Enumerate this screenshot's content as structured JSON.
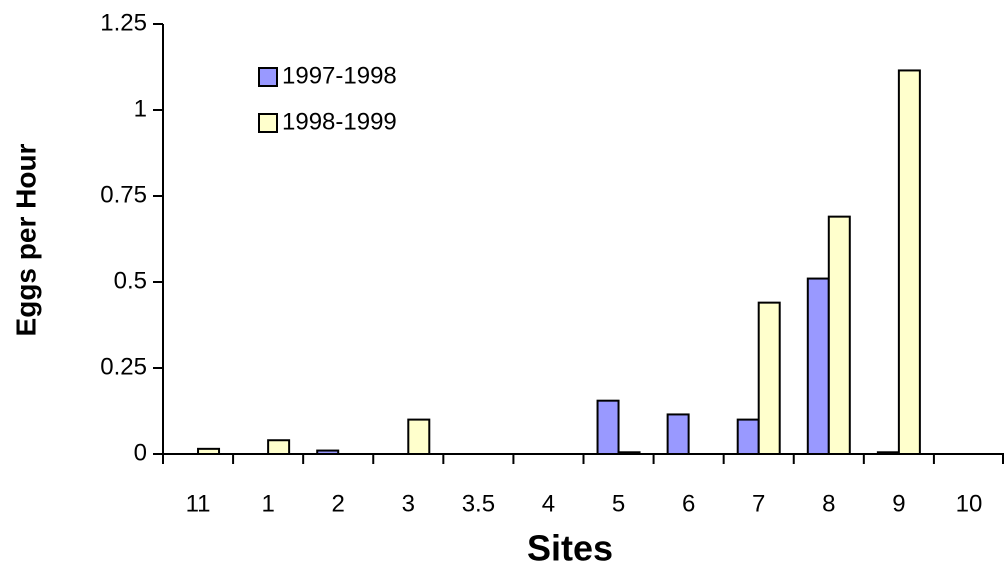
{
  "chart_data": {
    "type": "bar",
    "x_label": "Sites",
    "y_label": "Eggs per Hour",
    "categories": [
      "11",
      "1",
      "2",
      "3",
      "3.5",
      "4",
      "5",
      "6",
      "7",
      "8",
      "9",
      "10"
    ],
    "series": [
      {
        "name": "1997-1998",
        "color": "#9999ff",
        "values": [
          0,
          0,
          0.01,
          0,
          0,
          0,
          0.155,
          0.115,
          0.1,
          0.51,
          0.005,
          0
        ]
      },
      {
        "name": "1998-1999",
        "color": "#ffffcc",
        "values": [
          0.015,
          0.04,
          0,
          0.1,
          0,
          0,
          0.005,
          0,
          0.44,
          0.69,
          1.115,
          0
        ]
      }
    ],
    "ylim": [
      0,
      1.25
    ],
    "yticks": [
      0,
      0.25,
      0.5,
      0.75,
      1,
      1.25
    ],
    "legend": "upper-left"
  }
}
